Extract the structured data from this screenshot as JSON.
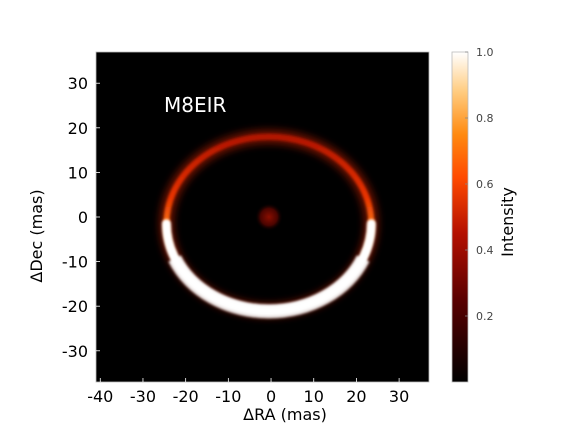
{
  "chart_data": {
    "type": "heatmap",
    "title": "",
    "annotation": "M8EIR",
    "xlabel": "ΔRA (mas)",
    "ylabel": "ΔDec (mas)",
    "xlim": [
      -41,
      37
    ],
    "ylim": [
      -37,
      37
    ],
    "xticks": [
      -40,
      -30,
      -20,
      -10,
      0,
      10,
      20,
      30
    ],
    "yticks": [
      -30,
      -20,
      -10,
      0,
      10,
      20,
      30
    ],
    "xtick_labels": [
      "-40",
      "-30",
      "-20",
      "-10",
      "0",
      "10",
      "20",
      "30"
    ],
    "ytick_labels": [
      "-30",
      "-20",
      "-10",
      "0",
      "10",
      "20",
      "30"
    ],
    "colormap": "gist_heat",
    "colorbar": {
      "label": "Intensity",
      "range": [
        0.0,
        1.0
      ],
      "ticks": [
        0.2,
        0.4,
        0.6,
        0.8,
        1.0
      ],
      "tick_labels": [
        "0.2",
        "0.4",
        "0.6",
        "0.8",
        "1.0"
      ]
    },
    "features": [
      {
        "name": "ring",
        "center": [
          -0.5,
          -1.5
        ],
        "rx": 24.0,
        "ry": 19.5,
        "peak_intensity": 1.0,
        "bright_side": "south",
        "faint_side_intensity": 0.45
      },
      {
        "name": "central-source",
        "center": [
          -0.5,
          0.0
        ],
        "radius": 1.5,
        "peak_intensity": 0.35
      }
    ],
    "grid": false,
    "legend": "none"
  }
}
